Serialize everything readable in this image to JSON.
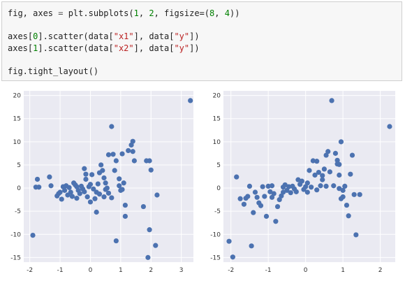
{
  "code": {
    "line1": {
      "a": "fig, axes ",
      "eq": "=",
      "b": " plt.subplots(",
      "n1": "1",
      "c": ", ",
      "n2": "2",
      "d": ", figsize=(",
      "n3": "8",
      "e": ", ",
      "n4": "4",
      "f": "))"
    },
    "line2": {
      "a": "axes[",
      "n": "0",
      "b": "].scatter(data[",
      "s1": "\"x1\"",
      "c": "], data[",
      "s2": "\"y\"",
      "d": "])"
    },
    "line3": {
      "a": "axes[",
      "n": "1",
      "b": "].scatter(data[",
      "s1": "\"x2\"",
      "c": "], data[",
      "s2": "\"y\"",
      "d": "])"
    },
    "line4": {
      "a": "fig.tight_layout()"
    }
  },
  "colors": {
    "marker": "#4c72b0",
    "axes_bg": "#eaeaf2",
    "grid": "#ffffff"
  },
  "chart_data": [
    {
      "type": "scatter",
      "xlim": [
        -2.2,
        3.4
      ],
      "ylim": [
        -16,
        21
      ],
      "xticks": [
        -2,
        -1,
        0,
        1,
        2,
        3
      ],
      "yticks": [
        -15,
        -10,
        -5,
        0,
        5,
        10,
        15,
        20
      ],
      "grid": true,
      "points": [
        [
          -1.9,
          -10.2
        ],
        [
          -1.75,
          1.9
        ],
        [
          -1.8,
          0.2
        ],
        [
          -1.7,
          0.2
        ],
        [
          -1.35,
          2.4
        ],
        [
          -1.3,
          0.5
        ],
        [
          -1.1,
          -1.7
        ],
        [
          -1.05,
          -1.2
        ],
        [
          -1.0,
          -0.9
        ],
        [
          -0.95,
          -2.4
        ],
        [
          -0.9,
          0.3
        ],
        [
          -0.85,
          -0.5
        ],
        [
          -0.8,
          0.5
        ],
        [
          -0.75,
          -1.5
        ],
        [
          -0.7,
          0.1
        ],
        [
          -0.65,
          -0.9
        ],
        [
          -0.6,
          -1.8
        ],
        [
          -0.55,
          1.1
        ],
        [
          -0.5,
          0.7
        ],
        [
          -0.45,
          0.3
        ],
        [
          -0.4,
          -0.5
        ],
        [
          -0.35,
          -1.2
        ],
        [
          -0.3,
          0.4
        ],
        [
          -0.25,
          -0.2
        ],
        [
          -0.2,
          -0.8
        ],
        [
          -0.15,
          1.9
        ],
        [
          -0.1,
          -1.9
        ],
        [
          -0.05,
          0.3
        ],
        [
          0.0,
          0.8
        ],
        [
          0.05,
          2.9
        ],
        [
          -0.15,
          3.0
        ],
        [
          -0.2,
          4.2
        ],
        [
          0.1,
          -0.2
        ],
        [
          0.15,
          -2.3
        ],
        [
          0.2,
          -0.9
        ],
        [
          0.3,
          -1.3
        ],
        [
          0.3,
          3.3
        ],
        [
          0.35,
          5.0
        ],
        [
          0.4,
          3.8
        ],
        [
          0.45,
          2.2
        ],
        [
          0.5,
          1.1
        ],
        [
          0.55,
          0.0
        ],
        [
          0.6,
          -1.1
        ],
        [
          0.6,
          7.2
        ],
        [
          0.7,
          13.3
        ],
        [
          0.75,
          7.3
        ],
        [
          0.8,
          3.8
        ],
        [
          0.85,
          5.9
        ],
        [
          0.95,
          2.0
        ],
        [
          0.95,
          0.5
        ],
        [
          1.0,
          -0.5
        ],
        [
          1.1,
          1.1
        ],
        [
          1.05,
          -0.3
        ],
        [
          1.15,
          -3.7
        ],
        [
          1.15,
          -6.1
        ],
        [
          1.05,
          7.4
        ],
        [
          1.25,
          8.1
        ],
        [
          1.35,
          9.3
        ],
        [
          1.4,
          10.1
        ],
        [
          1.4,
          7.9
        ],
        [
          1.45,
          5.9
        ],
        [
          1.85,
          5.9
        ],
        [
          1.95,
          5.9
        ],
        [
          2.0,
          3.9
        ],
        [
          2.2,
          -1.5
        ],
        [
          1.75,
          -4.0
        ],
        [
          0.85,
          -11.4
        ],
        [
          1.95,
          -9.0
        ],
        [
          1.9,
          -15.0
        ],
        [
          2.15,
          -12.4
        ],
        [
          3.3,
          18.9
        ],
        [
          0.5,
          -0.3
        ],
        [
          0.25,
          0.9
        ],
        [
          -0.45,
          -2.2
        ],
        [
          0.0,
          -3.0
        ],
        [
          0.2,
          -5.2
        ],
        [
          0.45,
          -1.9
        ],
        [
          0.7,
          -2.1
        ]
      ]
    },
    {
      "type": "scatter",
      "xlim": [
        -2.2,
        2.4
      ],
      "ylim": [
        -16,
        21
      ],
      "xticks": [
        -2,
        -1,
        0,
        1,
        2
      ],
      "yticks": [
        -15,
        -10,
        -5,
        0,
        5,
        10,
        15,
        20
      ],
      "grid": true,
      "points": [
        [
          -2.05,
          -11.5
        ],
        [
          -1.95,
          -14.9
        ],
        [
          -1.85,
          2.4
        ],
        [
          -1.75,
          -2.3
        ],
        [
          -1.65,
          -3.5
        ],
        [
          -1.6,
          -2.2
        ],
        [
          -1.55,
          -1.8
        ],
        [
          -1.5,
          0.4
        ],
        [
          -1.45,
          -12.5
        ],
        [
          -1.4,
          -5.3
        ],
        [
          -1.35,
          -0.9
        ],
        [
          -1.3,
          -2.0
        ],
        [
          -1.25,
          -3.2
        ],
        [
          -1.2,
          -3.8
        ],
        [
          -1.15,
          0.3
        ],
        [
          -1.1,
          -1.8
        ],
        [
          -1.05,
          -6.1
        ],
        [
          -1.0,
          0.4
        ],
        [
          -0.95,
          -0.8
        ],
        [
          -0.9,
          0.5
        ],
        [
          -0.85,
          -1.2
        ],
        [
          -0.8,
          -7.2
        ],
        [
          -0.75,
          -4.0
        ],
        [
          -0.7,
          -2.5
        ],
        [
          -0.65,
          -1.7
        ],
        [
          -0.6,
          -0.9
        ],
        [
          -0.55,
          0.7
        ],
        [
          -0.5,
          -0.5
        ],
        [
          -0.45,
          0.3
        ],
        [
          -0.4,
          -1.0
        ],
        [
          -0.35,
          0.4
        ],
        [
          -0.3,
          -0.2
        ],
        [
          -0.25,
          -0.8
        ],
        [
          -0.2,
          1.8
        ],
        [
          -0.15,
          0.8
        ],
        [
          -0.1,
          1.5
        ],
        [
          -0.05,
          -0.3
        ],
        [
          0.0,
          0.3
        ],
        [
          0.05,
          1.1
        ],
        [
          0.1,
          3.8
        ],
        [
          0.15,
          0.2
        ],
        [
          0.2,
          5.9
        ],
        [
          0.25,
          2.8
        ],
        [
          0.3,
          5.8
        ],
        [
          0.35,
          3.4
        ],
        [
          0.4,
          0.5
        ],
        [
          0.45,
          2.7
        ],
        [
          0.5,
          4.1
        ],
        [
          0.55,
          7.1
        ],
        [
          0.55,
          0.4
        ],
        [
          0.6,
          7.9
        ],
        [
          0.65,
          3.5
        ],
        [
          0.7,
          18.9
        ],
        [
          0.75,
          0.5
        ],
        [
          0.8,
          7.5
        ],
        [
          0.85,
          6.0
        ],
        [
          0.9,
          5.1
        ],
        [
          0.9,
          2.8
        ],
        [
          0.95,
          10.0
        ],
        [
          0.95,
          -2.3
        ],
        [
          1.0,
          -1.9
        ],
        [
          1.05,
          0.4
        ],
        [
          1.0,
          -0.5
        ],
        [
          1.1,
          -3.7
        ],
        [
          1.15,
          -6.0
        ],
        [
          1.2,
          3.0
        ],
        [
          1.25,
          7.1
        ],
        [
          1.3,
          -1.4
        ],
        [
          1.35,
          -10.1
        ],
        [
          1.45,
          -1.4
        ],
        [
          0.85,
          5.2
        ],
        [
          0.9,
          -0.1
        ],
        [
          2.25,
          13.3
        ],
        [
          -0.6,
          0.2
        ],
        [
          0.3,
          -0.4
        ],
        [
          0.45,
          1.8
        ],
        [
          0.05,
          -0.9
        ],
        [
          -0.9,
          -2.0
        ]
      ]
    }
  ]
}
